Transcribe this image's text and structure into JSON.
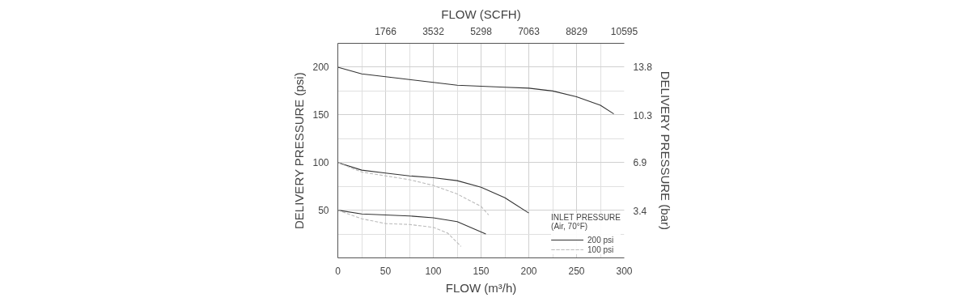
{
  "chart_data": {
    "type": "line",
    "xlabel": "FLOW (m³/h)",
    "x2label": "FLOW (SCFH)",
    "ylabel": "DELIVERY PRESSURE (psi)",
    "y2label": "DELIVERY PRESSURE (bar)",
    "legend_title": "INLET PRESSURE\n(Air, 70°F)",
    "xlim": [
      0,
      300
    ],
    "xticks": [
      0,
      50,
      100,
      150,
      200,
      250,
      300
    ],
    "x2lim": [
      0,
      10595
    ],
    "x2ticks": [
      1766,
      3532,
      5298,
      7063,
      8829,
      10595
    ],
    "ylim": [
      0,
      225
    ],
    "yticks": [
      50,
      100,
      150,
      200
    ],
    "y2lim": [
      0,
      15.52
    ],
    "y2ticks": [
      3.4,
      6.9,
      10.3,
      13.8
    ],
    "grid": true,
    "legend": "bottom right",
    "marker": "none",
    "series": [
      {
        "name": "200 psi",
        "color": "#333333",
        "line_style": "solid",
        "x": [
          0,
          25,
          50,
          75,
          100,
          125,
          150,
          175,
          200,
          225,
          250,
          275,
          289
        ],
        "values": [
          200,
          193,
          190,
          187,
          184,
          181,
          180,
          179,
          178,
          175,
          169,
          160,
          151
        ]
      },
      {
        "color": "#333333",
        "line_style": "solid",
        "x": [
          0,
          25,
          50,
          75,
          100,
          125,
          150,
          175,
          200
        ],
        "values": [
          100,
          92,
          89,
          86,
          84,
          81,
          74,
          63,
          47
        ]
      },
      {
        "color": "#333333",
        "line_style": "solid",
        "x": [
          0,
          25,
          50,
          75,
          100,
          125,
          155
        ],
        "values": [
          50,
          46,
          45,
          44,
          42,
          38,
          25
        ]
      },
      {
        "name": "100 psi",
        "color": "#bbbbbb",
        "line_style": "dashed",
        "x": [
          0,
          25,
          50,
          75,
          100,
          125,
          150,
          158
        ],
        "values": [
          100,
          90,
          86,
          82,
          76,
          67,
          54,
          45
        ]
      },
      {
        "color": "#bbbbbb",
        "line_style": "dashed",
        "x": [
          0,
          25,
          50,
          75,
          100,
          115,
          129
        ],
        "values": [
          50,
          41,
          36,
          35,
          32,
          26,
          12
        ]
      }
    ]
  }
}
